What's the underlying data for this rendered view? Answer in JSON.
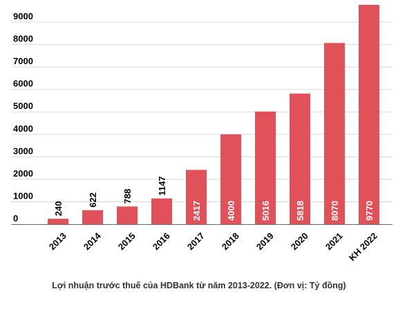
{
  "caption": "Lợi nhuận trước thuế của HDBank từ năm 2013-2022. (Đơn vị: Tỷ đồng)",
  "colors": {
    "bar": "#e0515a",
    "grid": "#d9d9d9",
    "axis": "#666666",
    "text": "#000000",
    "label_inside": "#ffffff"
  },
  "chart_data": {
    "type": "bar",
    "categories": [
      "2013",
      "2014",
      "2015",
      "2016",
      "2017",
      "2018",
      "2019",
      "2020",
      "2021",
      "KH 2022"
    ],
    "values": [
      240,
      622,
      788,
      1147,
      2417,
      4000,
      5016,
      5818,
      8070,
      9770
    ],
    "data_labels": [
      "240",
      "622",
      "788",
      "1147",
      "2417",
      "4000",
      "5016",
      "5818",
      "8070",
      "9770"
    ],
    "y_ticks": [
      0,
      1000,
      2000,
      3000,
      4000,
      5000,
      6000,
      7000,
      8000,
      9000
    ],
    "y_tick_labels": [
      "0",
      "1000",
      "2000",
      "3000",
      "4000",
      "5000",
      "6000",
      "7000",
      "8000",
      "9000"
    ],
    "ylim": [
      0,
      9800
    ],
    "grid": true,
    "legend": false,
    "x_tick_rotation": -45,
    "data_label_rotation": -90
  }
}
